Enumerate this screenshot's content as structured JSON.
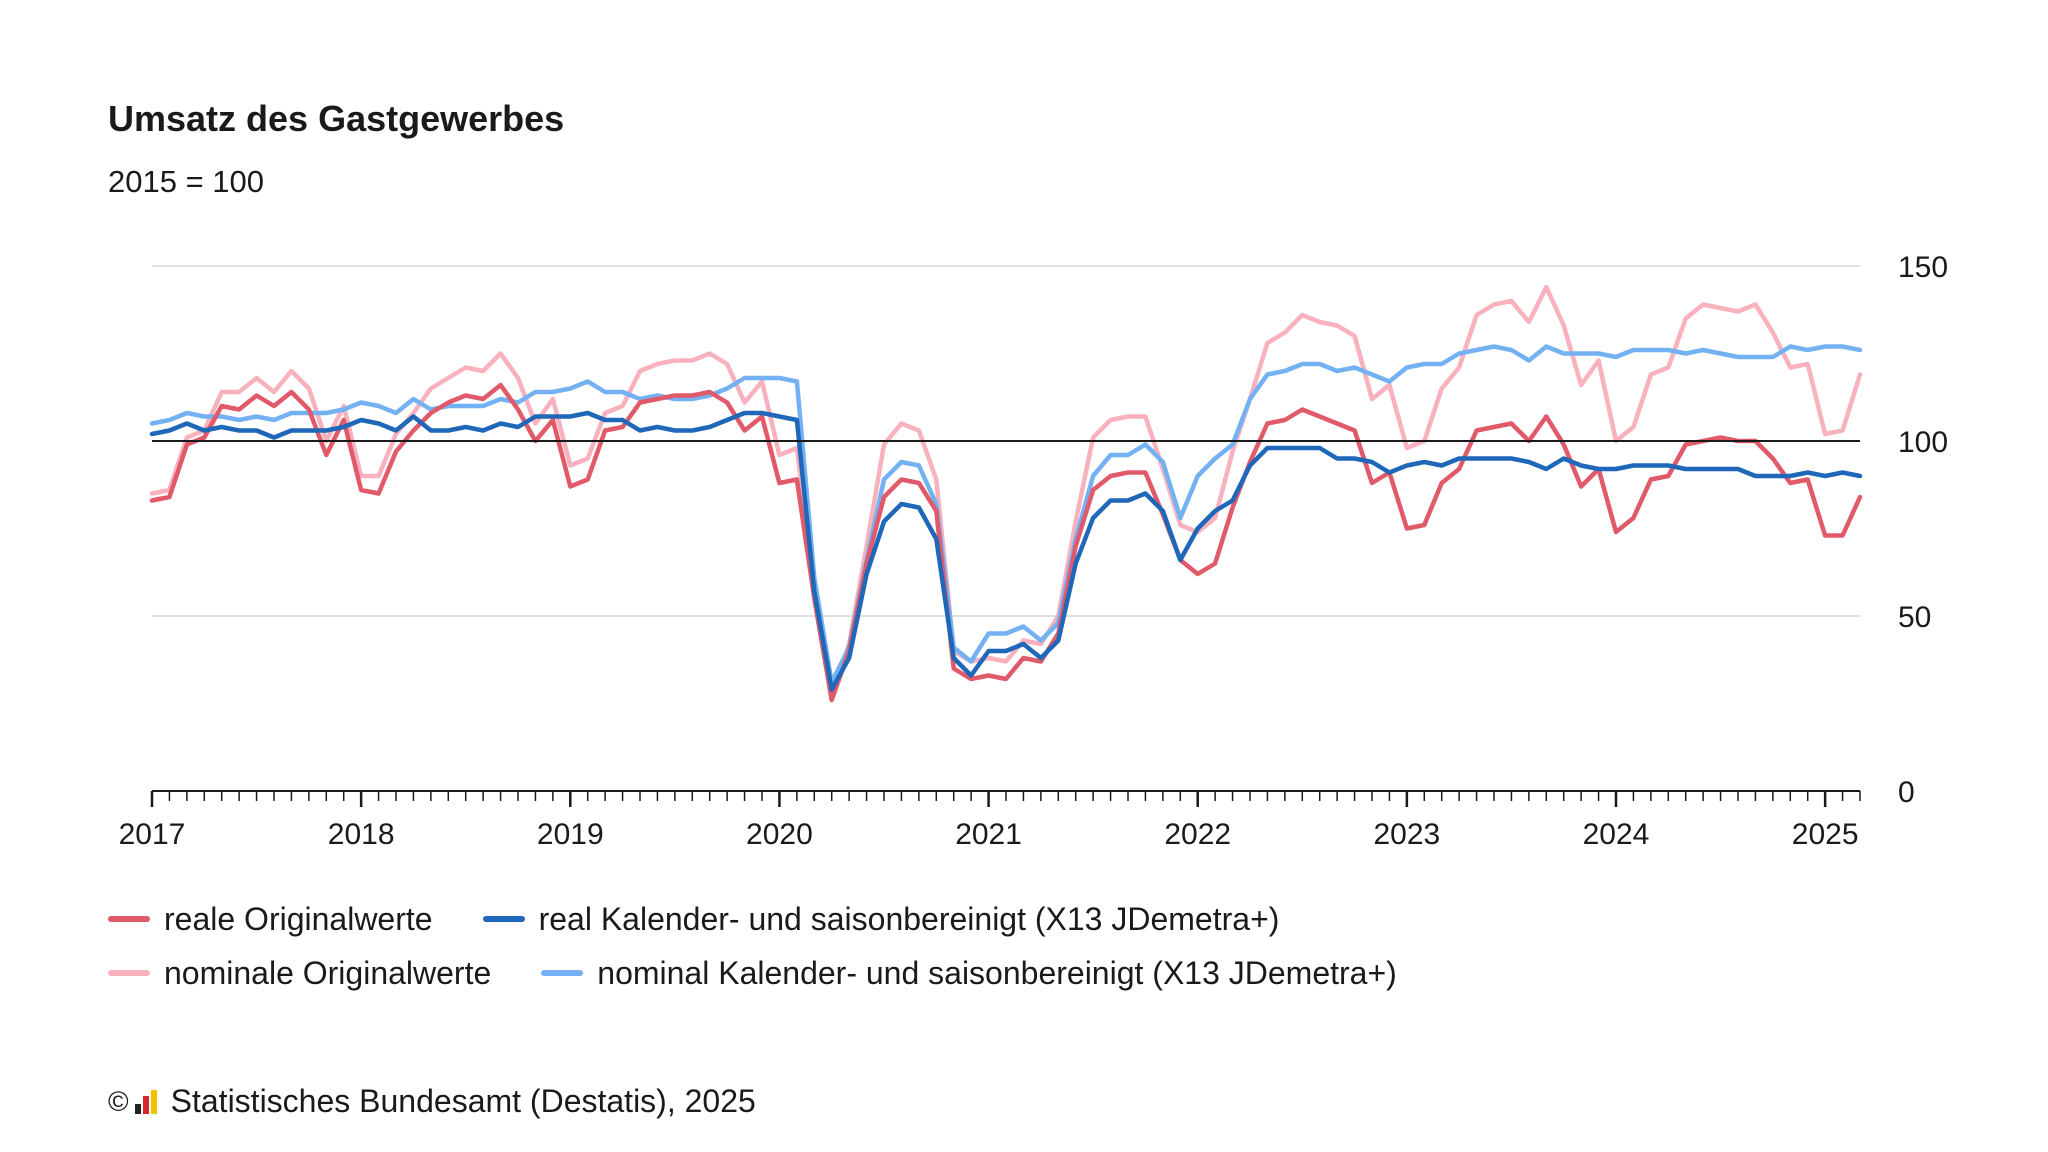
{
  "chart_data": {
    "type": "line",
    "title": "Umsatz des Gastgewerbes",
    "subtitle": "2015 = 100",
    "ylim": [
      0,
      150
    ],
    "yticks": [
      0,
      50,
      100,
      150
    ],
    "reference_line": 100,
    "x_start": "2017-01",
    "x_end": "2025-03",
    "xtick_labels": [
      "2017",
      "2018",
      "2019",
      "2020",
      "2021",
      "2022",
      "2023",
      "2024",
      "2025"
    ],
    "grid": "horizontal",
    "legend_position": "bottom",
    "series": [
      {
        "name": "reale Originalwerte",
        "color": "#e05a6a",
        "values": [
          83,
          84,
          99,
          101,
          110,
          109,
          113,
          110,
          114,
          109,
          96,
          106,
          86,
          85,
          97,
          103,
          108,
          111,
          113,
          112,
          116,
          109,
          100,
          106,
          87,
          89,
          103,
          104,
          111,
          112,
          113,
          113,
          114,
          111,
          103,
          107,
          88,
          89,
          55,
          26,
          40,
          65,
          84,
          89,
          88,
          80,
          35,
          32,
          33,
          32,
          38,
          37,
          45,
          70,
          86,
          90,
          91,
          91,
          79,
          66,
          62,
          65,
          81,
          94,
          105,
          106,
          109,
          107,
          105,
          103,
          88,
          91,
          75,
          76,
          88,
          92,
          103,
          104,
          105,
          100,
          107,
          99,
          87,
          92,
          74,
          78,
          89,
          90,
          99,
          100,
          101,
          100,
          100,
          95,
          88,
          89,
          73,
          73,
          84
        ]
      },
      {
        "name": "real Kalender- und saisonbereinigt (X13 JDemetra+)",
        "color": "#1f67b9",
        "values": [
          102,
          103,
          105,
          103,
          104,
          103,
          103,
          101,
          103,
          103,
          103,
          104,
          106,
          105,
          103,
          107,
          103,
          103,
          104,
          103,
          105,
          104,
          107,
          107,
          107,
          108,
          106,
          106,
          103,
          104,
          103,
          103,
          104,
          106,
          108,
          108,
          107,
          106,
          57,
          29,
          38,
          62,
          77,
          82,
          81,
          72,
          38,
          33,
          40,
          40,
          42,
          38,
          43,
          65,
          78,
          83,
          83,
          85,
          80,
          66,
          75,
          80,
          83,
          93,
          98,
          98,
          98,
          98,
          95,
          95,
          94,
          91,
          93,
          94,
          93,
          95,
          95,
          95,
          95,
          94,
          92,
          95,
          93,
          92,
          92,
          93,
          93,
          93,
          92,
          92,
          92,
          92,
          90,
          90,
          90,
          91,
          90,
          91,
          90
        ]
      },
      {
        "name": "nominale Originalwerte",
        "color": "#f8b1bd",
        "values": [
          85,
          86,
          101,
          103,
          114,
          114,
          118,
          114,
          120,
          115,
          100,
          110,
          90,
          90,
          102,
          108,
          115,
          118,
          121,
          120,
          125,
          118,
          105,
          112,
          93,
          95,
          108,
          110,
          120,
          122,
          123,
          123,
          125,
          122,
          111,
          117,
          96,
          98,
          58,
          27,
          42,
          70,
          99,
          105,
          103,
          89,
          40,
          37,
          38,
          37,
          43,
          42,
          50,
          77,
          101,
          106,
          107,
          107,
          92,
          76,
          74,
          78,
          97,
          112,
          128,
          131,
          136,
          134,
          133,
          130,
          112,
          116,
          98,
          100,
          115,
          121,
          136,
          139,
          140,
          134,
          144,
          133,
          116,
          123,
          100,
          104,
          119,
          121,
          135,
          139,
          138,
          137,
          139,
          131,
          121,
          122,
          102,
          103,
          119
        ]
      },
      {
        "name": "nominal Kalender- und saisonbereinigt (X13 JDemetra+)",
        "color": "#73b1f3",
        "values": [
          105,
          106,
          108,
          107,
          107,
          106,
          107,
          106,
          108,
          108,
          108,
          109,
          111,
          110,
          108,
          112,
          109,
          110,
          110,
          110,
          112,
          111,
          114,
          114,
          115,
          117,
          114,
          114,
          112,
          113,
          112,
          112,
          113,
          115,
          118,
          118,
          118,
          117,
          61,
          31,
          41,
          66,
          89,
          94,
          93,
          82,
          41,
          37,
          45,
          45,
          47,
          43,
          48,
          72,
          90,
          96,
          96,
          99,
          94,
          78,
          90,
          95,
          99,
          112,
          119,
          120,
          122,
          122,
          120,
          121,
          119,
          117,
          121,
          122,
          122,
          125,
          126,
          127,
          126,
          123,
          127,
          125,
          125,
          125,
          124,
          126,
          126,
          126,
          125,
          126,
          125,
          124,
          124,
          124,
          127,
          126,
          127,
          127,
          126
        ]
      }
    ]
  },
  "source": {
    "copyright": "©",
    "text": "Statistisches Bundesamt (Destatis), 2025"
  }
}
